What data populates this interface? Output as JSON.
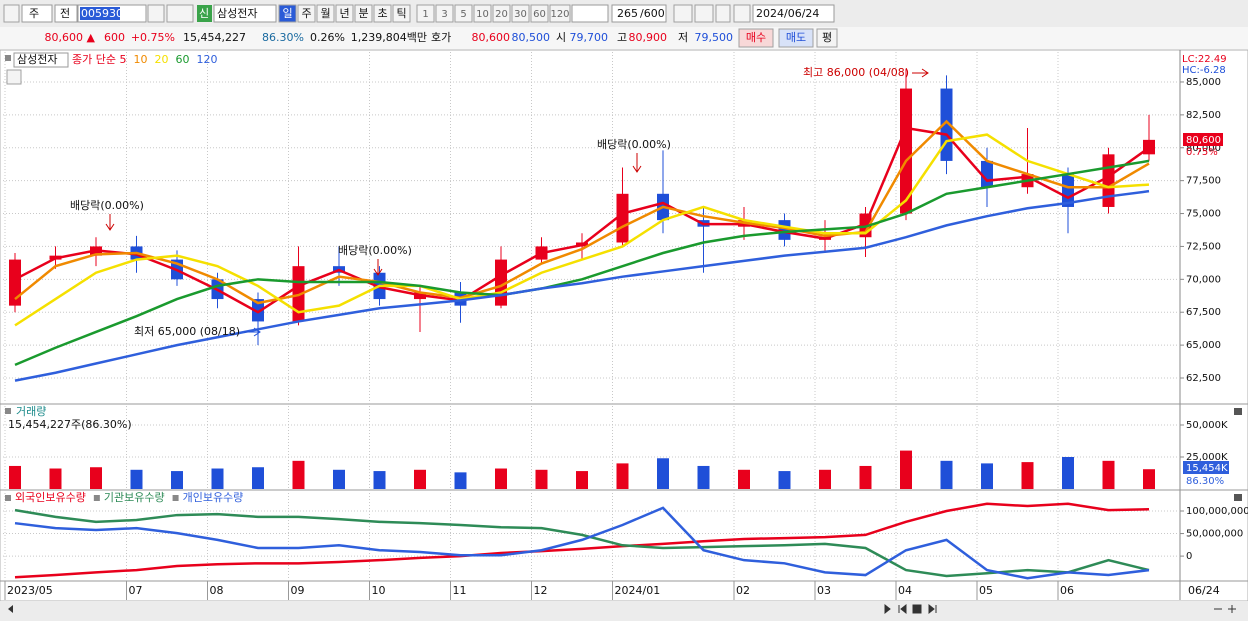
{
  "toolbar": {
    "period_unit": "주",
    "market": "전",
    "code": "005930",
    "badge": "신",
    "name": "삼성전자",
    "periods": [
      "일",
      "주",
      "월",
      "년",
      "분",
      "초",
      "틱"
    ],
    "intervals": [
      "1",
      "3",
      "5",
      "10",
      "20",
      "30",
      "60",
      "120"
    ],
    "count": "265",
    "count_max": "/600",
    "date": "2024/06/24"
  },
  "info": {
    "price": "80,600 ▲",
    "change": "600",
    "change_rate": "+0.75%",
    "volume": "15,454,227",
    "volume_rate": "86.30%",
    "turnover_rate": "0.26%",
    "amount": "1,239,804백만",
    "quote_label": "호가",
    "ask": "80,600",
    "bid": "80,500",
    "open_label": "시",
    "open": "79,700",
    "high_label": "고",
    "high": "80,900",
    "low_label": "저",
    "low": "79,500",
    "buy": "매수",
    "sell": "매도",
    "eval": "평"
  },
  "chart_data": [
    {
      "type": "candlestick",
      "title": "삼성전자",
      "lc": "LC:22.49",
      "hc": "HC:-6.28",
      "current_label": "80,600",
      "current_change": "0.75%",
      "annotations": {
        "high": "최고 86,000 (04/08)",
        "low": "최저 65,000 (08/18)",
        "dividend": [
          "배당락(0.00%)",
          "배당락(0.00%)",
          "배당락(0.00%)"
        ]
      },
      "categories": [
        "2023/05",
        null,
        null,
        "07",
        null,
        "08",
        null,
        "09",
        null,
        "10",
        null,
        "11",
        null,
        "12",
        null,
        "2024/01",
        null,
        null,
        "02",
        null,
        "03",
        null,
        "04",
        null,
        "05",
        null,
        "06",
        null,
        null
      ],
      "last_date": "06/24",
      "open": [
        68000,
        71500,
        71800,
        72500,
        71500,
        70000,
        68500,
        66800,
        71000,
        70500,
        68500,
        69000,
        68000,
        71500,
        72500,
        72800,
        76500,
        74500,
        74000,
        74500,
        73000,
        73200,
        75000,
        84500,
        79000,
        77000,
        78000,
        75500,
        79500
      ],
      "high": [
        72000,
        72500,
        73200,
        73300,
        72200,
        70500,
        69000,
        72500,
        72500,
        71000,
        69500,
        69800,
        72500,
        73200,
        73500,
        78500,
        79800,
        75500,
        75500,
        75000,
        74500,
        75500,
        86000,
        85500,
        80000,
        81500,
        78500,
        80000,
        82500
      ],
      "low": [
        67500,
        70800,
        71000,
        70500,
        69500,
        67800,
        65000,
        66500,
        69500,
        68000,
        66000,
        66700,
        67800,
        71200,
        71500,
        72500,
        73500,
        70500,
        73000,
        72500,
        72000,
        71700,
        74500,
        78000,
        75500,
        76500,
        73500,
        75000,
        79000
      ],
      "close": [
        71500,
        71800,
        72500,
        71500,
        70000,
        68500,
        66800,
        71000,
        70500,
        68500,
        69000,
        68000,
        71500,
        72500,
        72800,
        76500,
        74500,
        74000,
        74500,
        73000,
        73200,
        75000,
        84500,
        79000,
        77000,
        78000,
        75500,
        79500,
        80600
      ],
      "up_color": "#e8001c",
      "down_color": "#1f4fd8",
      "series": [
        {
          "name": "종가 단순 5",
          "color": "#e8001c",
          "values": [
            70000,
            71600,
            72200,
            71900,
            70700,
            69200,
            67500,
            69500,
            70700,
            69400,
            68800,
            68400,
            70300,
            72000,
            72600,
            75000,
            75800,
            74200,
            74200,
            73600,
            73100,
            74200,
            81500,
            81000,
            77500,
            77800,
            76200,
            77800,
            80000
          ]
        },
        {
          "name": "10",
          "color": "#f08a00",
          "values": [
            68500,
            71000,
            71900,
            72000,
            71200,
            70000,
            68200,
            68800,
            70200,
            69800,
            69000,
            68600,
            69500,
            71200,
            72300,
            74000,
            75500,
            74800,
            74300,
            73900,
            73300,
            73600,
            79000,
            82000,
            79000,
            78000,
            77000,
            77000,
            78800
          ]
        },
        {
          "name": "20",
          "color": "#f5e000",
          "values": [
            66500,
            68500,
            70500,
            71500,
            71800,
            71000,
            69500,
            67500,
            68000,
            69500,
            69500,
            68500,
            69000,
            70500,
            71500,
            72500,
            74500,
            75500,
            74500,
            74000,
            73500,
            73500,
            76000,
            80500,
            81000,
            79000,
            78000,
            77000,
            77200
          ]
        },
        {
          "name": "60",
          "color": "#1a9a2e",
          "values": [
            63500,
            64800,
            66000,
            67200,
            68500,
            69500,
            70000,
            69800,
            69800,
            69800,
            69500,
            69000,
            68800,
            69300,
            70000,
            71000,
            72000,
            72800,
            73300,
            73600,
            73800,
            74000,
            75000,
            76500,
            77000,
            77500,
            78000,
            78500,
            79000
          ]
        },
        {
          "name": "120",
          "color": "#2f5fdc",
          "values": [
            62300,
            62900,
            63600,
            64300,
            65000,
            65600,
            66200,
            66800,
            67300,
            67800,
            68100,
            68400,
            68800,
            69300,
            69700,
            70200,
            70600,
            71000,
            71400,
            71800,
            72100,
            72400,
            73200,
            74100,
            74800,
            75400,
            75800,
            76300,
            76700
          ]
        }
      ],
      "ylim": [
        60600,
        87050
      ],
      "yticks": [
        {
          "value": 62500,
          "label": "62,500"
        },
        {
          "value": 65000,
          "label": "65,000"
        },
        {
          "value": 67500,
          "label": "67,500"
        },
        {
          "value": 70000,
          "label": "70,000"
        },
        {
          "value": 72500,
          "label": "72,500"
        },
        {
          "value": 75000,
          "label": "75,000"
        },
        {
          "value": 77500,
          "label": "77,500"
        },
        {
          "value": 80000,
          "label": "80,000"
        },
        {
          "value": 82500,
          "label": "82,500"
        },
        {
          "value": 85000,
          "label": "85,000"
        }
      ],
      "grid": true
    },
    {
      "type": "bar",
      "title": "거래량",
      "subtitle": "15,454,227주(86.30%)",
      "current_label": "15,454K",
      "current_rate": "86.30%",
      "values": [
        18000,
        16000,
        17000,
        15000,
        14000,
        16000,
        17000,
        22000,
        15000,
        14000,
        15000,
        13000,
        16000,
        15000,
        14000,
        20000,
        24000,
        18000,
        15000,
        14000,
        15000,
        18000,
        30000,
        22000,
        20000,
        21000,
        25000,
        22000,
        15454
      ],
      "ylim": [
        0,
        61700
      ],
      "yticks": [
        {
          "value": 25000,
          "label": "25,000K"
        },
        {
          "value": 50000,
          "label": "50,000K"
        }
      ],
      "grid": true
    },
    {
      "type": "line",
      "series": [
        {
          "name": "외국인보유수량",
          "color": "#e8001c",
          "values": [
            -47000000,
            -42000000,
            -36000000,
            -31000000,
            -22000000,
            -18000000,
            -16000000,
            -16000000,
            -13000000,
            -9000000,
            -4000000,
            0,
            7000000,
            11000000,
            16000000,
            22000000,
            27000000,
            33000000,
            38000000,
            40000000,
            42000000,
            47000000,
            76000000,
            100000000,
            116000000,
            111000000,
            116000000,
            102000000,
            104000000
          ]
        },
        {
          "name": "기관보유수량",
          "color": "#2e8b57",
          "values": [
            102000000,
            87000000,
            76000000,
            80000000,
            91000000,
            93000000,
            87000000,
            87000000,
            82000000,
            76000000,
            73000000,
            69000000,
            64000000,
            62000000,
            47000000,
            24000000,
            18000000,
            20000000,
            22000000,
            24000000,
            27000000,
            18000000,
            -31000000,
            -44000000,
            -38000000,
            -31000000,
            -36000000,
            -9000000,
            -31000000
          ]
        },
        {
          "name": "개인보유수량",
          "color": "#2f5fdc",
          "values": [
            73000000,
            62000000,
            58000000,
            62000000,
            51000000,
            36000000,
            18000000,
            18000000,
            24000000,
            13000000,
            9000000,
            2000000,
            2000000,
            13000000,
            36000000,
            69000000,
            107000000,
            13000000,
            -9000000,
            -16000000,
            -36000000,
            -42000000,
            13000000,
            36000000,
            -31000000,
            -49000000,
            -36000000,
            -42000000,
            -31000000
          ]
        }
      ],
      "ylim": [
        -53000000,
        135500000
      ],
      "yticks": [
        {
          "value": 0,
          "label": "0"
        },
        {
          "value": 50000000,
          "label": "50,000,000"
        },
        {
          "value": 100000000,
          "label": "100,000,000"
        }
      ],
      "grid": true
    }
  ]
}
